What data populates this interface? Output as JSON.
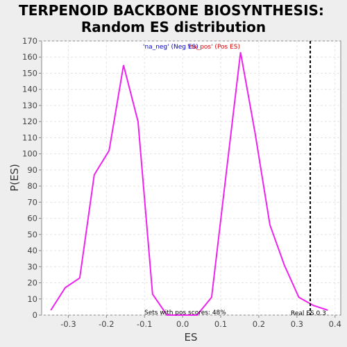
{
  "chart_data": {
    "type": "line",
    "title_line1": "TERPENOID BACKBONE BIOSYNTHESIS:",
    "title_line2": "Random ES distribution",
    "xlabel": "ES",
    "ylabel": "P(ES)",
    "xlim": [
      -0.37,
      0.415
    ],
    "ylim": [
      0,
      170
    ],
    "xticks": [
      -0.3,
      -0.2,
      -0.1,
      0.0,
      0.1,
      0.2,
      0.3,
      0.4
    ],
    "xtick_labels": [
      "-0.3",
      "-0.2",
      "-0.1",
      "0.0",
      "0.1",
      "0.2",
      "0.3",
      "0.4"
    ],
    "yticks": [
      0,
      10,
      20,
      30,
      40,
      50,
      60,
      70,
      80,
      90,
      100,
      110,
      120,
      130,
      140,
      150,
      160,
      170
    ],
    "ytick_labels": [
      "0",
      "10",
      "20",
      "30",
      "40",
      "50",
      "60",
      "70",
      "80",
      "90",
      "100",
      "110",
      "120",
      "130",
      "140",
      "150",
      "160",
      "170"
    ],
    "grid": true,
    "series": [
      {
        "color": "#ee22ee",
        "x": [
          -0.346,
          -0.308,
          -0.27,
          -0.232,
          -0.193,
          -0.155,
          -0.117,
          -0.079,
          -0.041,
          0.0,
          0.038,
          0.076,
          0.114,
          0.152,
          0.19,
          0.229,
          0.267,
          0.305,
          0.343,
          0.381
        ],
        "y": [
          3,
          17,
          23,
          87,
          102,
          155,
          120,
          13,
          0,
          0,
          0,
          11,
          87,
          163,
          113,
          56,
          31,
          11,
          6,
          3
        ]
      }
    ],
    "real_es": 0.335,
    "real_es_label": "Real ES 0.3",
    "legend_neg": "'na_neg' (Neg ES)",
    "legend_pos": "'na_pos' (Pos ES)",
    "legend_neg_color": "#0000cc",
    "legend_pos_color": "#dd0000",
    "annotation": "Sets with pos scores: 48%"
  }
}
